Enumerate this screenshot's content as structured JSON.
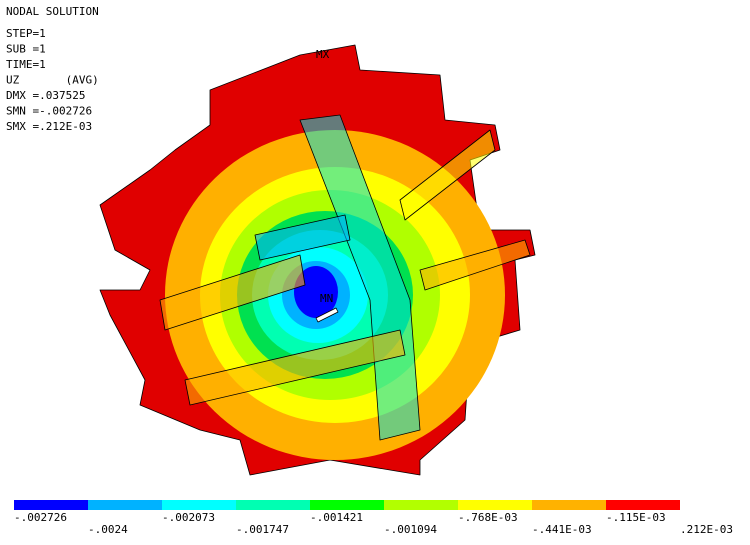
{
  "header": {
    "title": "NODAL SOLUTION",
    "lines": [
      "STEP=1",
      "SUB =1",
      "TIME=1",
      "UZ       (AVG)",
      "DMX =.037525",
      "SMN =-.002726",
      "SMX =.212E-03"
    ]
  },
  "model": {
    "max_label": "MX",
    "min_label": "MN"
  },
  "legend": {
    "colors": [
      "#0000ff",
      "#00b2ff",
      "#00ffff",
      "#00ffb2",
      "#00ff00",
      "#b2ff00",
      "#ffff00",
      "#ffb200",
      "#ff0000"
    ],
    "labels": [
      "-.002726",
      "-.0024",
      "-.002073",
      "-.001747",
      "-.001421",
      "-.001094",
      "-.768E-03",
      "-.441E-03",
      "-.115E-03",
      ".212E-03"
    ]
  }
}
